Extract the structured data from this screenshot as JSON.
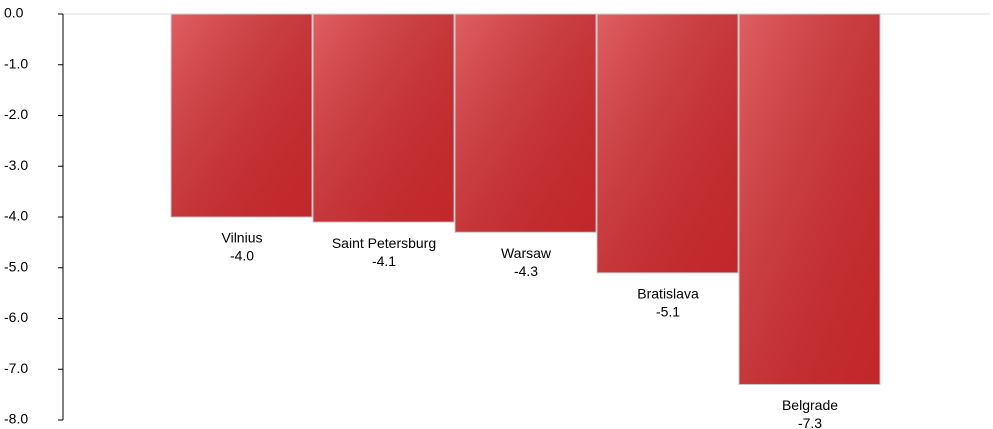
{
  "chart_data": {
    "type": "bar",
    "categories": [
      "Vilnius",
      "Saint Petersburg",
      "Warsaw",
      "Bratislava",
      "Belgrade"
    ],
    "values": [
      -4.0,
      -4.1,
      -4.3,
      -5.1,
      -7.3
    ],
    "value_labels": [
      "-4.0",
      "-4.1",
      "-4.3",
      "-5.1",
      "-7.3"
    ],
    "color": "#d42a2e",
    "ylim": [
      -8,
      0
    ],
    "yticks": [
      {
        "value": 0,
        "label": "0.0"
      },
      {
        "value": -1,
        "label": "-1.0"
      },
      {
        "value": -2,
        "label": "-2.0"
      },
      {
        "value": -3,
        "label": "-3.0"
      },
      {
        "value": -4,
        "label": "-4.0"
      },
      {
        "value": -5,
        "label": "-5.0"
      },
      {
        "value": -6,
        "label": "-6.0"
      },
      {
        "value": -7,
        "label": "-7.0"
      },
      {
        "value": -8,
        "label": "-8.0"
      }
    ]
  }
}
